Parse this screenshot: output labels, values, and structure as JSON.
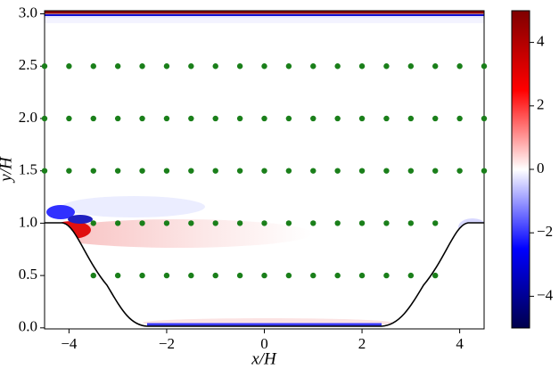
{
  "chart_data": {
    "type": "scatter",
    "x_label": "x/H",
    "y_label": "y/H",
    "xlim": [
      -4.5,
      4.5
    ],
    "ylim": [
      -0.01,
      3.03
    ],
    "xticks": [
      {
        "value": -4,
        "label": "−4"
      },
      {
        "value": -2,
        "label": "−2"
      },
      0,
      2,
      4
    ],
    "yticks": [
      {
        "value": 0,
        "label": "0.0"
      },
      {
        "value": 0.5,
        "label": "0.5"
      },
      {
        "value": 1,
        "label": "1.0"
      },
      {
        "value": 1.5,
        "label": "1.5"
      },
      {
        "value": 2,
        "label": "2.0"
      },
      {
        "value": 2.5,
        "label": "2.5"
      },
      {
        "value": 3,
        "label": "3.0"
      }
    ],
    "series": [
      {
        "color": "#1a7f1a",
        "x": [
          -3.5,
          -3,
          -2.5,
          -2,
          -1.5,
          -1,
          -0.5,
          0,
          0.5,
          1,
          1.5,
          2,
          2.5,
          3,
          3.5,
          -3.5,
          -3,
          -2.5,
          -2,
          -1.5,
          -1,
          -0.5,
          0,
          0.5,
          1,
          1.5,
          2,
          2.5,
          3,
          3.5,
          -4.5,
          -4,
          -3.5,
          -3,
          -2.5,
          -2,
          -1.5,
          -1,
          -0.5,
          0,
          0.5,
          1,
          1.5,
          2,
          2.5,
          3,
          3.5,
          4,
          4.5,
          -4.5,
          -4,
          -3.5,
          -3,
          -2.5,
          -2,
          -1.5,
          -1,
          -0.5,
          0,
          0.5,
          1,
          1.5,
          2,
          2.5,
          3,
          3.5,
          4,
          4.5,
          -4.5,
          -4,
          -3.5,
          -3,
          -2.5,
          -2,
          -1.5,
          -1,
          -0.5,
          0,
          0.5,
          1,
          1.5,
          2,
          2.5,
          3,
          3.5,
          4,
          4.5
        ],
        "values": [
          0.5,
          0.5,
          0.5,
          0.5,
          0.5,
          0.5,
          0.5,
          0.5,
          0.5,
          0.5,
          0.5,
          0.5,
          0.5,
          0.5,
          0.5,
          1,
          1,
          1,
          1,
          1,
          1,
          1,
          1,
          1,
          1,
          1,
          1,
          1,
          1,
          1,
          1.5,
          1.5,
          1.5,
          1.5,
          1.5,
          1.5,
          1.5,
          1.5,
          1.5,
          1.5,
          1.5,
          1.5,
          1.5,
          1.5,
          1.5,
          1.5,
          1.5,
          1.5,
          1.5,
          2,
          2,
          2,
          2,
          2,
          2,
          2,
          2,
          2,
          2,
          2,
          2,
          2,
          2,
          2,
          2,
          2,
          2,
          2,
          2.5,
          2.5,
          2.5,
          2.5,
          2.5,
          2.5,
          2.5,
          2.5,
          2.5,
          2.5,
          2.5,
          2.5,
          2.5,
          2.5,
          2.5,
          2.5,
          2.5,
          2.5,
          2.5
        ]
      }
    ],
    "colorbar": {
      "lim": [
        -5,
        5
      ],
      "ticks": [
        {
          "value": -4,
          "label": "−4"
        },
        {
          "value": -2,
          "label": "−2"
        },
        0,
        2,
        4
      ],
      "colormap": [
        "#00004c",
        "#0000ff",
        "#ffffff",
        "#ff0000",
        "#7f0000"
      ]
    }
  }
}
